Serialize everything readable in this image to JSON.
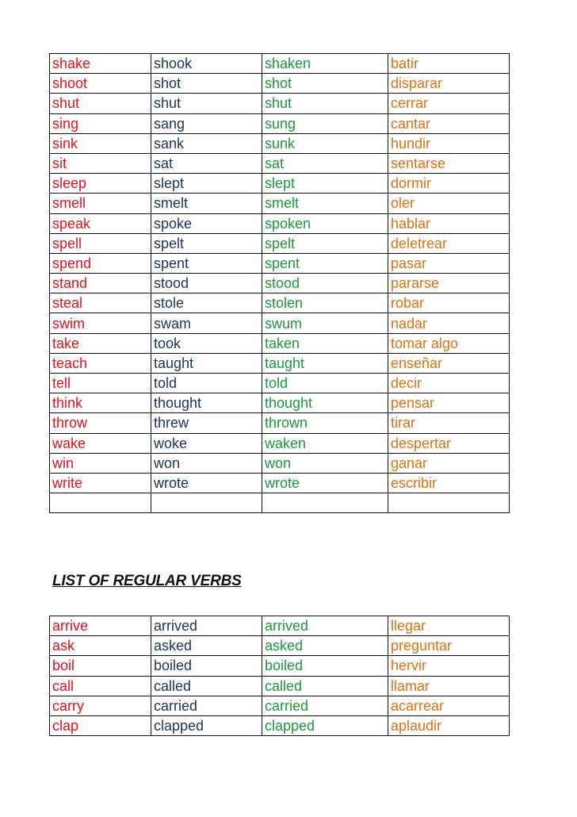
{
  "colors": {
    "base": "#e8101a",
    "past": "#1f3458",
    "participle": "#1a9a3a",
    "spanish": "#e2700f"
  },
  "irregular_verbs": [
    [
      "shake",
      "shook",
      "shaken",
      "batir"
    ],
    [
      "shoot",
      "shot",
      "shot",
      "disparar"
    ],
    [
      "shut",
      "shut",
      "shut",
      "cerrar"
    ],
    [
      "sing",
      "sang",
      "sung",
      "cantar"
    ],
    [
      "sink",
      "sank",
      "sunk",
      "hundir"
    ],
    [
      "sit",
      "sat",
      "sat",
      "sentarse"
    ],
    [
      "sleep",
      "slept",
      "slept",
      "dormir"
    ],
    [
      "smell",
      "smelt",
      "smelt",
      "oler"
    ],
    [
      "speak",
      "spoke",
      "spoken",
      "hablar"
    ],
    [
      "spell",
      "spelt",
      "spelt",
      "deletrear"
    ],
    [
      "spend",
      "spent",
      "spent",
      "pasar"
    ],
    [
      "stand",
      "stood",
      "stood",
      "pararse"
    ],
    [
      "steal",
      "stole",
      "stolen",
      "robar"
    ],
    [
      "swim",
      "swam",
      "swum",
      "nadar"
    ],
    [
      "take",
      "took",
      "taken",
      "tomar algo"
    ],
    [
      "teach",
      "taught",
      "taught",
      "enseñar"
    ],
    [
      "tell",
      "told",
      "told",
      "decir"
    ],
    [
      "think",
      "thought",
      "thought",
      "pensar"
    ],
    [
      "throw",
      "threw",
      "thrown",
      "tirar"
    ],
    [
      "wake",
      "woke",
      "waken",
      "despertar"
    ],
    [
      "win",
      "won",
      "won",
      "ganar"
    ],
    [
      "write",
      "wrote",
      "wrote",
      "escribir"
    ],
    [
      "",
      "",
      "",
      ""
    ]
  ],
  "regular_heading": "LIST OF REGULAR VERBS",
  "regular_verbs": [
    [
      "arrive",
      "arrived",
      "arrived",
      "llegar"
    ],
    [
      "ask",
      "asked",
      "asked",
      "preguntar"
    ],
    [
      "boil",
      "boiled",
      "boiled",
      "hervir"
    ],
    [
      "call",
      "called",
      "called",
      "llamar"
    ],
    [
      "carry",
      "carried",
      "carried",
      "acarrear"
    ],
    [
      "clap",
      "clapped",
      "clapped",
      "aplaudir"
    ]
  ]
}
